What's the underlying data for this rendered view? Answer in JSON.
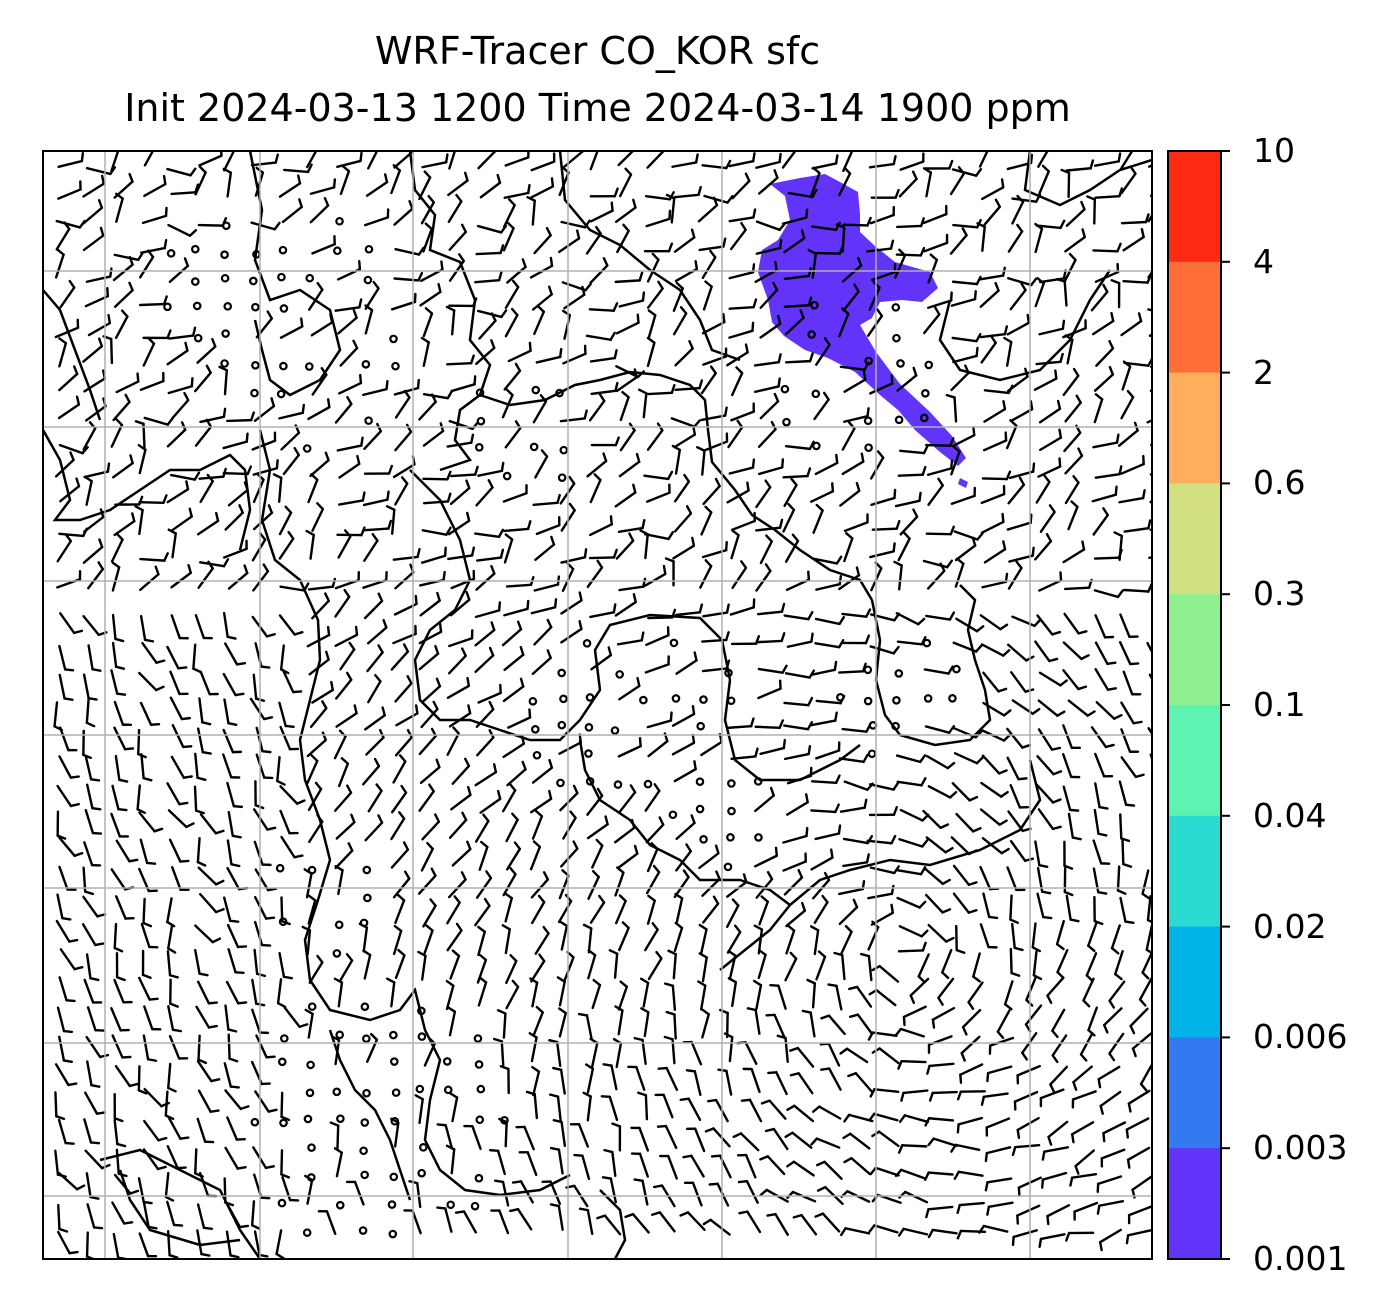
{
  "title": {
    "line1": "WRF-Tracer CO_KOR sfc",
    "line2": "Init 2024-03-13 1200 Time 2024-03-14 1900 ppm"
  },
  "colorbar": {
    "levels": [
      "10",
      "4",
      "2",
      "0.6",
      "0.3",
      "0.1",
      "0.04",
      "0.02",
      "0.006",
      "0.003",
      "0.001"
    ],
    "colors": [
      "#ff2a14",
      "#ff6e37",
      "#ffae5e",
      "#d2e082",
      "#8ff08f",
      "#5cf3b3",
      "#2bdad1",
      "#00b4ea",
      "#3379f0",
      "#6233f9"
    ]
  },
  "tracer_plume": {
    "level_range": "0.001 - 0.003",
    "color": "#6233f9"
  },
  "wind_barbs": {
    "calm_marker": "calm-circle-icon",
    "barb_marker": "wind-barb-icon"
  }
}
